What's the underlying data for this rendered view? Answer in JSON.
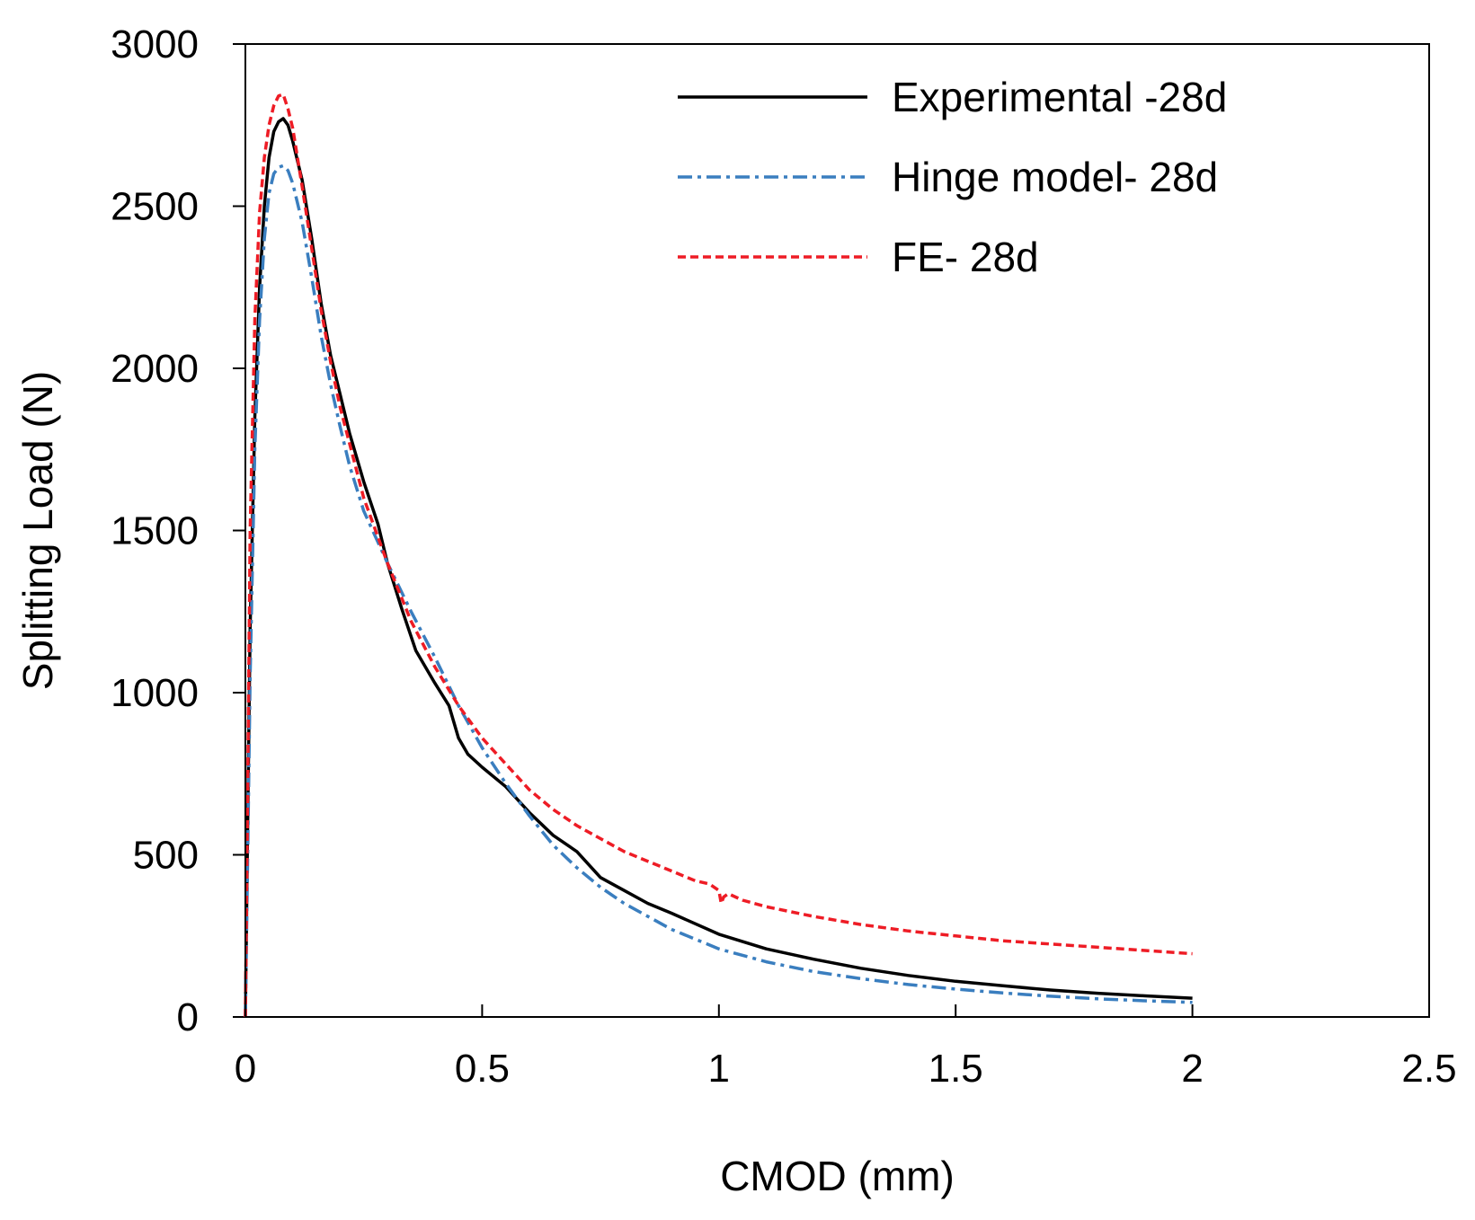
{
  "chart_data": {
    "type": "line",
    "xlabel": "CMOD (mm)",
    "ylabel": "Splitting Load (N)",
    "xlim": [
      0,
      2.5
    ],
    "ylim": [
      0,
      3000
    ],
    "xticks": [
      0,
      0.5,
      1,
      1.5,
      2,
      2.5
    ],
    "xtick_labels": [
      "0",
      "0.5",
      "1",
      "1.5",
      "2",
      "2.5"
    ],
    "yticks": [
      0,
      500,
      1000,
      1500,
      2000,
      2500,
      3000
    ],
    "ytick_labels": [
      "0",
      "500",
      "1000",
      "1500",
      "2000",
      "2500",
      "3000"
    ],
    "grid": false,
    "legend_position": "top-right",
    "series": [
      {
        "name": "Experimental -28d",
        "color": "#000000",
        "style": "solid",
        "x": [
          0,
          0.005,
          0.01,
          0.02,
          0.03,
          0.04,
          0.05,
          0.06,
          0.07,
          0.08,
          0.09,
          0.1,
          0.12,
          0.14,
          0.16,
          0.18,
          0.2,
          0.22,
          0.25,
          0.28,
          0.3,
          0.33,
          0.36,
          0.4,
          0.43,
          0.45,
          0.47,
          0.5,
          0.55,
          0.6,
          0.65,
          0.7,
          0.75,
          0.8,
          0.85,
          0.9,
          1.0,
          1.1,
          1.2,
          1.3,
          1.4,
          1.5,
          1.6,
          1.7,
          1.8,
          1.9,
          2.0
        ],
        "y": [
          0,
          600,
          1200,
          1850,
          2250,
          2500,
          2650,
          2730,
          2760,
          2770,
          2750,
          2700,
          2580,
          2400,
          2200,
          2040,
          1920,
          1800,
          1650,
          1520,
          1400,
          1260,
          1130,
          1030,
          960,
          860,
          810,
          770,
          710,
          630,
          560,
          510,
          430,
          390,
          350,
          320,
          255,
          210,
          178,
          150,
          128,
          110,
          96,
          83,
          73,
          65,
          58
        ]
      },
      {
        "name": "Hinge model- 28d",
        "color": "#3a7ebf",
        "style": "dashdot",
        "x": [
          0,
          0.005,
          0.01,
          0.02,
          0.03,
          0.04,
          0.05,
          0.06,
          0.07,
          0.08,
          0.09,
          0.1,
          0.12,
          0.14,
          0.16,
          0.18,
          0.2,
          0.22,
          0.25,
          0.3,
          0.35,
          0.4,
          0.45,
          0.5,
          0.55,
          0.6,
          0.65,
          0.7,
          0.75,
          0.8,
          0.9,
          1.0,
          1.1,
          1.2,
          1.3,
          1.4,
          1.5,
          1.6,
          1.7,
          1.8,
          1.9,
          2.0
        ],
        "y": [
          0,
          500,
          1050,
          1750,
          2150,
          2400,
          2540,
          2600,
          2620,
          2625,
          2610,
          2570,
          2450,
          2280,
          2100,
          1950,
          1820,
          1700,
          1560,
          1400,
          1250,
          1110,
          960,
          830,
          720,
          620,
          530,
          460,
          400,
          350,
          270,
          210,
          170,
          140,
          118,
          100,
          86,
          74,
          64,
          56,
          50,
          45
        ]
      },
      {
        "name": "FE- 28d",
        "color": "#ee1c25",
        "style": "dashed",
        "x": [
          0,
          0.005,
          0.01,
          0.02,
          0.03,
          0.04,
          0.05,
          0.06,
          0.07,
          0.08,
          0.09,
          0.1,
          0.12,
          0.14,
          0.16,
          0.18,
          0.2,
          0.25,
          0.3,
          0.35,
          0.4,
          0.45,
          0.5,
          0.55,
          0.6,
          0.65,
          0.7,
          0.75,
          0.8,
          0.85,
          0.9,
          0.95,
          0.98,
          1.0,
          1.005,
          1.01,
          1.02,
          1.05,
          1.1,
          1.2,
          1.3,
          1.4,
          1.5,
          1.6,
          1.7,
          1.8,
          1.9,
          2.0
        ],
        "y": [
          0,
          700,
          1500,
          2150,
          2480,
          2650,
          2750,
          2810,
          2840,
          2845,
          2800,
          2740,
          2560,
          2370,
          2180,
          2020,
          1880,
          1600,
          1400,
          1220,
          1080,
          960,
          860,
          780,
          700,
          640,
          590,
          550,
          510,
          480,
          450,
          420,
          410,
          390,
          350,
          370,
          380,
          360,
          340,
          310,
          285,
          265,
          250,
          235,
          225,
          215,
          205,
          195
        ]
      }
    ]
  }
}
